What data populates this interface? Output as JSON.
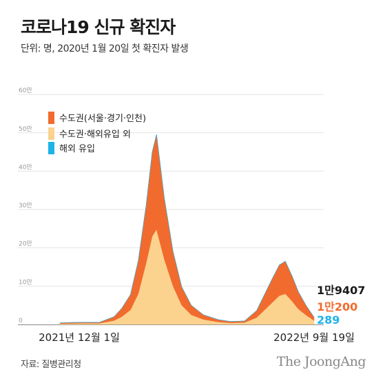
{
  "title": "코로나19 신규 확진자",
  "subtitle": "단위: 명, 2020년 1월 20일 첫 확진자 발생",
  "source": "자료: 질병관리청",
  "logo": "The JoongAng",
  "colors": {
    "capital": "#f26b2e",
    "non_capital": "#fbd28e",
    "overseas": "#1fb3e6",
    "grid": "#e3e3e3",
    "axis": "#888888"
  },
  "chart_data": {
    "type": "area",
    "stacked": true,
    "x_start_label": "2021년 12월 1일",
    "x_end_label": "2022년 9월 19일",
    "x": [
      "2021-12-01",
      "2021-12-15",
      "2022-01-01",
      "2022-01-15",
      "2022-02-01",
      "2022-02-10",
      "2022-02-20",
      "2022-03-01",
      "2022-03-10",
      "2022-03-17",
      "2022-03-22",
      "2022-03-31",
      "2022-04-10",
      "2022-04-20",
      "2022-05-01",
      "2022-05-15",
      "2022-06-01",
      "2022-06-15",
      "2022-07-01",
      "2022-07-15",
      "2022-08-01",
      "2022-08-10",
      "2022-08-17",
      "2022-08-25",
      "2022-09-01",
      "2022-09-10",
      "2022-09-19"
    ],
    "series": [
      {
        "name": "수도권(서울·경기·인천)",
        "color": "#f26b2e",
        "values": [
          2000,
          2500,
          2500,
          2400,
          10000,
          22000,
          40000,
          86000,
          150000,
          220000,
          248000,
          160000,
          90000,
          48000,
          25000,
          12000,
          6000,
          3500,
          4000,
          18000,
          60000,
          80000,
          85000,
          65000,
          45000,
          25000,
          8918
        ]
      },
      {
        "name": "수도권·해외유입 외",
        "color": "#fbd28e",
        "values": [
          2100,
          2700,
          3000,
          3000,
          10000,
          20000,
          38000,
          80000,
          160000,
          230000,
          248000,
          170000,
          100000,
          50000,
          25000,
          13000,
          6500,
          4200,
          5000,
          18000,
          55000,
          75000,
          80000,
          60000,
          40000,
          24000,
          10200
        ]
      },
      {
        "name": "해외 유입",
        "color": "#1fb3e6",
        "values": [
          20,
          25,
          40,
          60,
          60,
          55,
          55,
          70,
          75,
          75,
          80,
          70,
          60,
          50,
          40,
          40,
          30,
          50,
          120,
          400,
          500,
          400,
          380,
          350,
          310,
          290,
          289
        ]
      }
    ],
    "yticks": [
      0,
      100000,
      200000,
      300000,
      400000,
      500000,
      600000
    ],
    "ytick_labels": [
      "0",
      "10만",
      "20만",
      "30만",
      "40만",
      "50만",
      "60만"
    ],
    "ylim": [
      0,
      620000
    ],
    "grid": true,
    "legend_placement": "top-left",
    "end_labels": [
      {
        "text": "1만9407",
        "color": "#1a1a1a"
      },
      {
        "text": "1만200",
        "color": "#f26b2e"
      },
      {
        "text": "289",
        "color": "#1fb3e6"
      }
    ]
  }
}
